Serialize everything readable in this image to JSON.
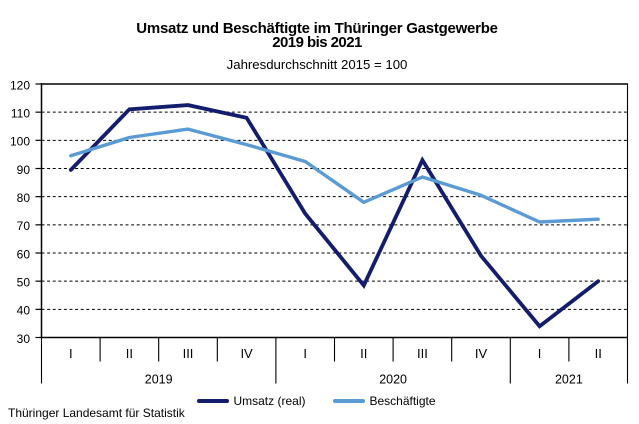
{
  "title": {
    "line1": "Umsatz und Beschäftigte im Thüringer Gastgewerbe",
    "line2": "2019 bis 2021",
    "note": "Jahresdurchschnitt 2015 = 100"
  },
  "chart_data": {
    "type": "line",
    "categories": [
      "I",
      "II",
      "III",
      "IV",
      "I",
      "II",
      "III",
      "IV",
      "I",
      "II"
    ],
    "year_groups": [
      {
        "label": "2019",
        "quarters": 4
      },
      {
        "label": "2020",
        "quarters": 4
      },
      {
        "label": "2021",
        "quarters": 2
      }
    ],
    "series": [
      {
        "name": "Umsatz (real)",
        "color": "#141c6e",
        "width": 3.8,
        "join": "miter",
        "values": [
          89.5,
          111,
          112.5,
          108,
          74,
          48.5,
          93,
          59,
          34,
          50
        ]
      },
      {
        "name": "Beschäftigte",
        "color": "#5b9bd5",
        "width": 3.4,
        "join": "round",
        "values": [
          94.5,
          101,
          104,
          98.5,
          92.5,
          78,
          87,
          80.5,
          71,
          72
        ]
      }
    ],
    "ylim": [
      30,
      120
    ],
    "ytick_step": 10,
    "yticks": [
      30,
      40,
      50,
      60,
      70,
      80,
      90,
      100,
      110,
      120
    ],
    "grid": "horizontal-dashed",
    "legend_position": "bottom"
  },
  "footer": {
    "source": "Thüringer Landesamt für Statistik"
  }
}
